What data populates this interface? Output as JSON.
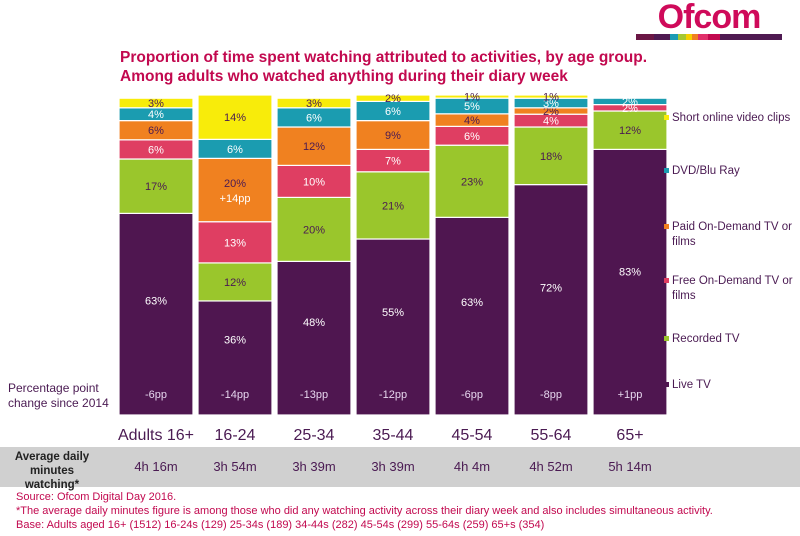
{
  "logo": {
    "text": "Ofcom",
    "strip_colors": [
      "#6b1745",
      "#4f1a52",
      "#1a9bb5",
      "#a5c832",
      "#f5d000",
      "#f08020",
      "#e0306a",
      "#c2094f",
      "#4f1a52",
      "#4f1a52",
      "#4f1a52"
    ]
  },
  "title": {
    "line1": "Proportion of time spent watching attributed to activities, by age group.",
    "line2": "Among adults who watched anything during their diary week"
  },
  "pp_note": "Percentage point change since 2014",
  "chart_data": {
    "type": "bar",
    "stacked": true,
    "title": "Proportion of time spent watching attributed to activities, by age group.",
    "subtitle": "Among adults who watched anything during their diary week",
    "xlabel": "",
    "ylabel": "",
    "ylim": [
      0,
      100
    ],
    "categories": [
      "Adults 16+",
      "16-24",
      "25-34",
      "35-44",
      "45-54",
      "55-64",
      "65+"
    ],
    "series": [
      {
        "name": "Live TV",
        "color": "#4f1650",
        "label_color": "#ffffff",
        "values": [
          63,
          36,
          48,
          55,
          63,
          72,
          83
        ]
      },
      {
        "name": "Recorded TV",
        "color": "#9ac62c",
        "label_color": "#4a1a52",
        "values": [
          17,
          12,
          20,
          21,
          23,
          18,
          12
        ]
      },
      {
        "name": "Free On-Demand TV or films",
        "color": "#df3e62",
        "label_color": "#ffffff",
        "values": [
          6,
          13,
          10,
          7,
          6,
          4,
          2
        ]
      },
      {
        "name": "Paid On-Demand TV or films",
        "color": "#f08120",
        "label_color": "#4a1a52",
        "values": [
          6,
          20,
          12,
          9,
          4,
          2,
          0
        ]
      },
      {
        "name": "DVD/Blu Ray",
        "color": "#1b9cb0",
        "label_color": "#ffffff",
        "values": [
          4,
          6,
          6,
          6,
          5,
          3,
          2
        ]
      },
      {
        "name": "Short online video clips",
        "color": "#f8ec0a",
        "label_color": "#4a1a52",
        "values": [
          3,
          14,
          3,
          2,
          1,
          1,
          0
        ]
      }
    ],
    "annotations": [
      {
        "category": "16-24",
        "series": "Paid On-Demand TV or films",
        "text": "+14pp"
      }
    ],
    "pp_change_since_2014": [
      "-6pp",
      "-14pp",
      "-13pp",
      "-12pp",
      "-6pp",
      "-8pp",
      "+1pp"
    ],
    "legend": {
      "placement": "right",
      "entries": [
        "Short online video clips",
        "DVD/Blu Ray",
        "Paid On-Demand TV or films",
        "Free On-Demand TV or films",
        "Recorded TV",
        "Live TV"
      ]
    },
    "grid": false
  },
  "average_minutes": {
    "label": "Average daily minutes watching*",
    "values": [
      "4h 16m",
      "3h 54m",
      "3h 39m",
      "3h 39m",
      "4h 4m",
      "4h 52m",
      "5h 14m"
    ]
  },
  "footnotes": {
    "source": "Source: Ofcom Digital Day 2016.",
    "note": "*The average daily minutes figure is among those who did any watching activity across their diary week and also includes simultaneous activity.",
    "base": "Base: Adults aged 16+ (1512) 16-24s (129) 25-34s (189) 34-44s (282) 45-54s (299) 55-64s (259)  65+s (354)"
  }
}
